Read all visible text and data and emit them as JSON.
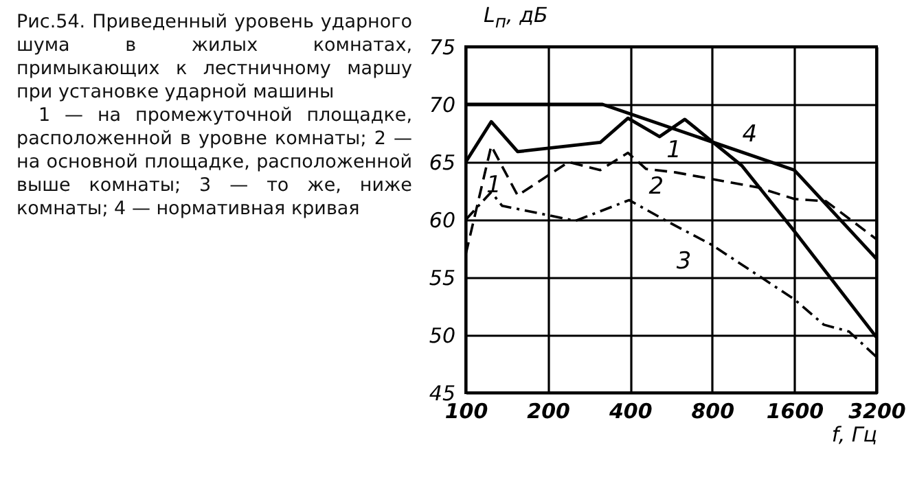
{
  "chart_data": {
    "type": "line",
    "title": "Рис.54. Приведенный уровень ударного шума в жилых комнатах, примыкающих к лестничному маршу при установке ударной машины",
    "xlabel": "f, Гц",
    "ylabel": "L$_{п}$, дБ",
    "annotations": [
      "1 — на промежуточной площадке, расположенной в уровне комнаты; 2 — на основной площадке, расположенной выше комнаты; 3 — то же, ниже комнаты; 4 — нормативная кривая",
      "1"
    ],
    "log": "x",
    "grid": true,
    "xlim": [
      100,
      3200
    ],
    "xticks": [
      100,
      200,
      400,
      800,
      1600,
      3200
    ],
    "ylim": [
      45,
      75
    ],
    "yticks": [
      45,
      50,
      55,
      60,
      65,
      70,
      75
    ],
    "series": [
      {
        "name": "1",
        "color": "#000000",
        "line_style": "solid",
        "x": [
          100,
          124,
          155,
          311,
          393,
          513,
          635,
          1026,
          1600,
          3200
        ],
        "values": [
          65,
          68.5,
          65.9,
          66.7,
          68.8,
          67.2,
          68.7,
          64.7,
          59,
          49.8
        ]
      },
      {
        "name": "2",
        "color": "#000000",
        "line_style": "dashed",
        "x": [
          100,
          124,
          155,
          238,
          311,
          393,
          458,
          588,
          1177,
          1600,
          2090,
          3200
        ],
        "values": [
          57,
          66.4,
          62.1,
          65,
          64.3,
          65.8,
          64.4,
          64.1,
          62.8,
          61.8,
          61.6,
          58.3
        ]
      },
      {
        "name": "3",
        "color": "#000000",
        "line_style": "dashdot",
        "x": [
          100,
          124,
          136,
          200,
          252,
          397,
          543,
          800,
          1600,
          2050,
          2540,
          3200
        ],
        "values": [
          60,
          62.4,
          61.2,
          60.4,
          59.9,
          61.7,
          59.9,
          57.8,
          53.1,
          50.9,
          50.3,
          48.1
        ]
      },
      {
        "name": "4",
        "color": "#000000",
        "line_style": "solid",
        "x": [
          100,
          317,
          1600,
          3200
        ],
        "values": [
          70,
          70,
          64.3,
          56.6
        ]
      }
    ]
  }
}
